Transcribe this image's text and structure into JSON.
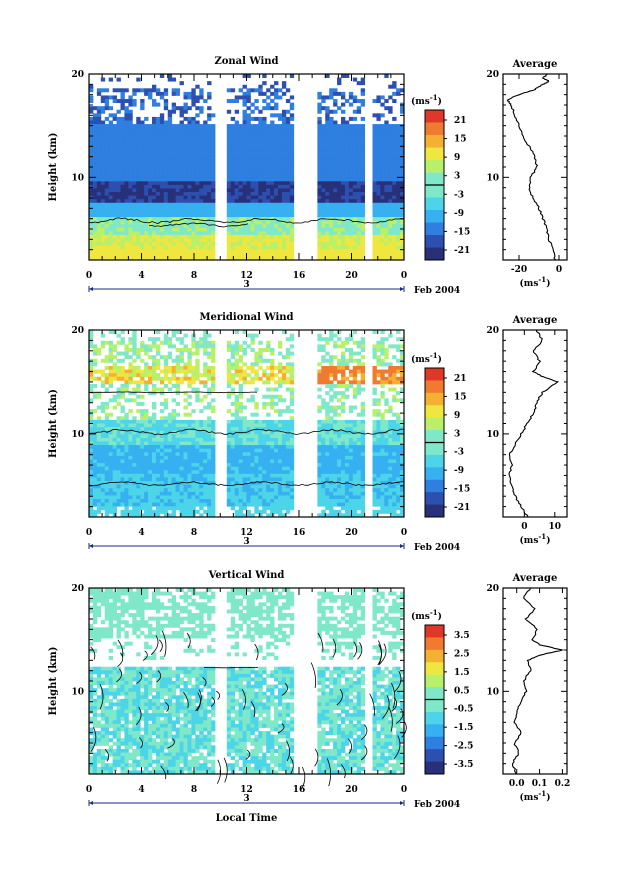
{
  "chart_data": [
    {
      "type": "heatmap",
      "title": "Zonal Wind",
      "ylabel": "Height (km)",
      "y_ticks": [
        "10",
        "20"
      ],
      "x_ticks": [
        "0",
        "4",
        "8",
        "12",
        "16",
        "20",
        "0"
      ],
      "date_marker": "3",
      "date_label": "Feb 2004",
      "colorbar": {
        "unit": "(ms",
        "unit_exp": "-1",
        "unit_close": ")",
        "ticks": [
          "21",
          "15",
          "9",
          "3",
          "-3",
          "-9",
          "-15",
          "-21"
        ]
      },
      "profile": {
        "title": "Average",
        "y_ticks": [
          "10",
          "20"
        ],
        "x_ticks": [
          "-20",
          "0"
        ],
        "xlabel": "(ms",
        "xlabel_exp": "-1",
        "xlabel_close": ")",
        "xlim": [
          -28,
          4
        ],
        "points": [
          [
            -2,
            2
          ],
          [
            -3,
            3
          ],
          [
            -5,
            4
          ],
          [
            -6,
            5
          ],
          [
            -8,
            6
          ],
          [
            -10,
            7
          ],
          [
            -13,
            8
          ],
          [
            -15,
            9
          ],
          [
            -14,
            10
          ],
          [
            -11,
            11
          ],
          [
            -12,
            12
          ],
          [
            -15,
            13
          ],
          [
            -18,
            14
          ],
          [
            -20,
            15
          ],
          [
            -22,
            16
          ],
          [
            -24,
            17
          ],
          [
            -26,
            17.5
          ],
          [
            -20,
            18
          ],
          [
            -12,
            18.5
          ],
          [
            -8,
            19
          ],
          [
            -5,
            19.3
          ],
          [
            -8,
            19.6
          ],
          [
            -6,
            20
          ]
        ]
      }
    },
    {
      "type": "heatmap",
      "title": "Meridional Wind",
      "ylabel": "Height (km)",
      "y_ticks": [
        "10",
        "20"
      ],
      "x_ticks": [
        "0",
        "4",
        "8",
        "12",
        "16",
        "20",
        "0"
      ],
      "date_marker": "3",
      "date_label": "Feb 2004",
      "colorbar": {
        "unit": "(ms",
        "unit_exp": "-1",
        "unit_close": ")",
        "ticks": [
          "21",
          "15",
          "9",
          "3",
          "-3",
          "-9",
          "-15",
          "-21"
        ]
      },
      "profile": {
        "title": "Average",
        "y_ticks": [
          "10",
          "20"
        ],
        "x_ticks": [
          "0",
          "10"
        ],
        "xlabel": "(ms",
        "xlabel_exp": "-1",
        "xlabel_close": ")",
        "xlim": [
          -7,
          14
        ],
        "points": [
          [
            1,
            2
          ],
          [
            -1,
            3
          ],
          [
            -3,
            4
          ],
          [
            -4,
            5
          ],
          [
            -5,
            6
          ],
          [
            -4,
            7
          ],
          [
            -5,
            8
          ],
          [
            -3,
            9
          ],
          [
            -1,
            10
          ],
          [
            1,
            11
          ],
          [
            3,
            12
          ],
          [
            4,
            13
          ],
          [
            6,
            14
          ],
          [
            11,
            15
          ],
          [
            6,
            15.5
          ],
          [
            3,
            16
          ],
          [
            5,
            17
          ],
          [
            3,
            18
          ],
          [
            6,
            19
          ],
          [
            4,
            20
          ]
        ]
      }
    },
    {
      "type": "heatmap",
      "title": "Vertical Wind",
      "ylabel": "Height (km)",
      "xlabel": "Local Time",
      "y_ticks": [
        "10",
        "20"
      ],
      "x_ticks": [
        "0",
        "4",
        "8",
        "12",
        "16",
        "20",
        "0"
      ],
      "date_marker": "3",
      "date_label": "Feb 2004",
      "colorbar": {
        "unit": "(ms",
        "unit_exp": "-1",
        "unit_close": ")",
        "ticks": [
          "3.5",
          "2.5",
          "1.5",
          "0.5",
          "-0.5",
          "-1.5",
          "-2.5",
          "-3.5"
        ]
      },
      "profile": {
        "title": "Average",
        "y_ticks": [
          "10",
          "20"
        ],
        "x_ticks": [
          "0.0",
          "0.1",
          "0.2"
        ],
        "xlabel": "(ms",
        "xlabel_exp": "-1",
        "xlabel_close": ")",
        "xlim": [
          -0.06,
          0.22
        ],
        "points": [
          [
            0.0,
            2
          ],
          [
            -0.02,
            3
          ],
          [
            0.01,
            4
          ],
          [
            -0.01,
            5
          ],
          [
            0.02,
            6
          ],
          [
            -0.01,
            7
          ],
          [
            0.0,
            8
          ],
          [
            0.02,
            9
          ],
          [
            0.04,
            10
          ],
          [
            0.03,
            11
          ],
          [
            0.06,
            12
          ],
          [
            0.05,
            13
          ],
          [
            0.1,
            13.5
          ],
          [
            0.2,
            14
          ],
          [
            0.1,
            14.5
          ],
          [
            0.07,
            15
          ],
          [
            0.09,
            16
          ],
          [
            0.04,
            17
          ],
          [
            0.08,
            18
          ],
          [
            0.03,
            19
          ],
          [
            0.06,
            20
          ]
        ]
      }
    }
  ]
}
